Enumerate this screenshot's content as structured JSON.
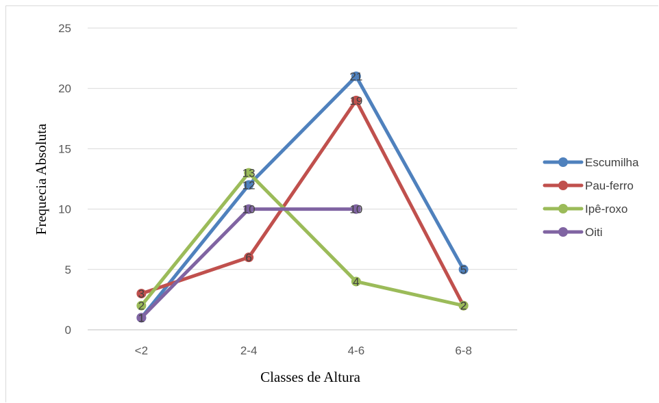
{
  "chart_data": {
    "type": "line",
    "title": "",
    "xlabel": "Classes de Altura",
    "ylabel": "Frequecia Absoluta",
    "categories": [
      "<2",
      "2-4",
      "4-6",
      "6-8"
    ],
    "ylim": [
      0,
      25
    ],
    "yticks": [
      "0",
      "5",
      "10",
      "15",
      "20",
      "25"
    ],
    "grid": true,
    "legend_position": "right",
    "series": [
      {
        "name": "Escumilha",
        "color": "#4f81bd",
        "values": [
          1,
          12,
          21,
          5
        ]
      },
      {
        "name": "Pau-ferro",
        "color": "#c0504d",
        "values": [
          3,
          6,
          19,
          2
        ]
      },
      {
        "name": "Ipê-roxo",
        "color": "#9bbb59",
        "values": [
          2,
          13,
          4,
          2
        ]
      },
      {
        "name": "Oiti",
        "color": "#8064a2",
        "values": [
          1,
          10,
          10,
          null
        ]
      }
    ]
  }
}
